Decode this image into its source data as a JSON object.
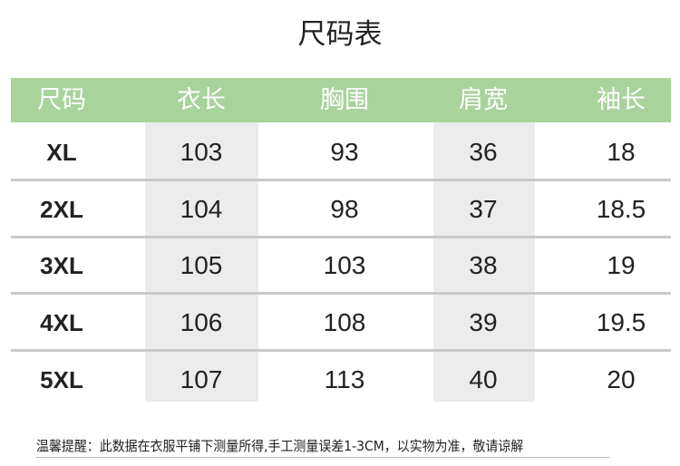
{
  "title": "尺码表",
  "colors": {
    "header_bg": "#a8d39c",
    "header_text": "#ffffff",
    "highlight_column": "#ececec"
  },
  "headers": [
    "尺码",
    "衣长",
    "胸围",
    "肩宽",
    "袖长"
  ],
  "rows": [
    [
      "XL",
      "103",
      "93",
      "36",
      "18"
    ],
    [
      "2XL",
      "104",
      "98",
      "37",
      "18.5"
    ],
    [
      "3XL",
      "105",
      "103",
      "38",
      "19"
    ],
    [
      "4XL",
      "106",
      "108",
      "39",
      "19.5"
    ],
    [
      "5XL",
      "107",
      "113",
      "40",
      "20"
    ]
  ],
  "note": "温馨提醒：此数据在衣服平铺下测量所得,手工测量误差1-3CM，以实物为准，敬请谅解"
}
